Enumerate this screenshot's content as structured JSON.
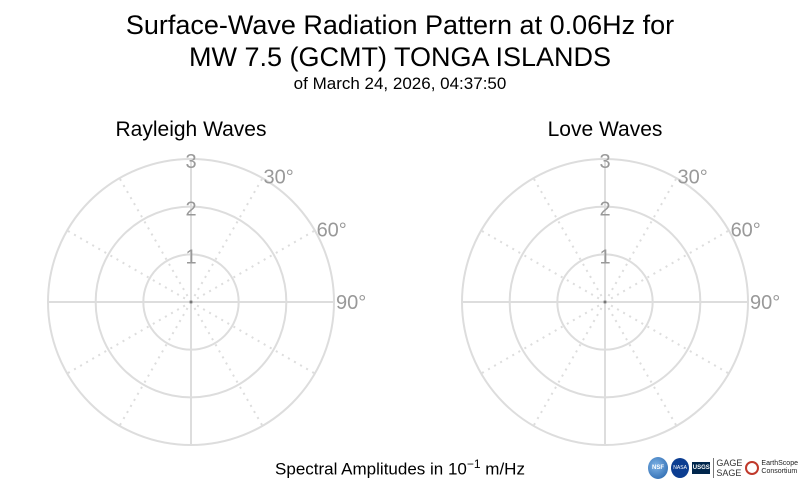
{
  "header": {
    "title_line1": "Surface-Wave Radiation Pattern at 0.06Hz for",
    "title_line2": "MW 7.5 (GCMT) TONGA ISLANDS",
    "subtitle": "of March 24, 2026, 04:37:50"
  },
  "footer": {
    "label_prefix": "Spectral Amplitudes in 10",
    "label_exponent": "−1",
    "label_suffix": " m/Hz"
  },
  "logos": {
    "nsf": "NSF",
    "nasa": "NASA",
    "usgs": "USGS",
    "gage": "GAGE",
    "sage": "SAGE",
    "earthscope": "EarthScope",
    "earthscope_sub": "Consortium"
  },
  "colors": {
    "grid": "#dddddd",
    "tick_label": "#999999"
  },
  "chart_data": [
    {
      "type": "polar",
      "title": "Rayleigh Waves",
      "radial_ticks": [
        "1",
        "2",
        "3"
      ],
      "radial_values": [
        1,
        2,
        3
      ],
      "rlim": [
        0,
        3
      ],
      "angle_labels": [
        "30°",
        "60°",
        "90°"
      ],
      "angle_values": [
        30,
        60,
        90
      ],
      "angular_grid_step_deg": 30,
      "grid": true,
      "series": []
    },
    {
      "type": "polar",
      "title": "Love Waves",
      "radial_ticks": [
        "1",
        "2",
        "3"
      ],
      "radial_values": [
        1,
        2,
        3
      ],
      "rlim": [
        0,
        3
      ],
      "angle_labels": [
        "30°",
        "60°",
        "90°"
      ],
      "angle_values": [
        30,
        60,
        90
      ],
      "angular_grid_step_deg": 30,
      "grid": true,
      "series": []
    }
  ]
}
